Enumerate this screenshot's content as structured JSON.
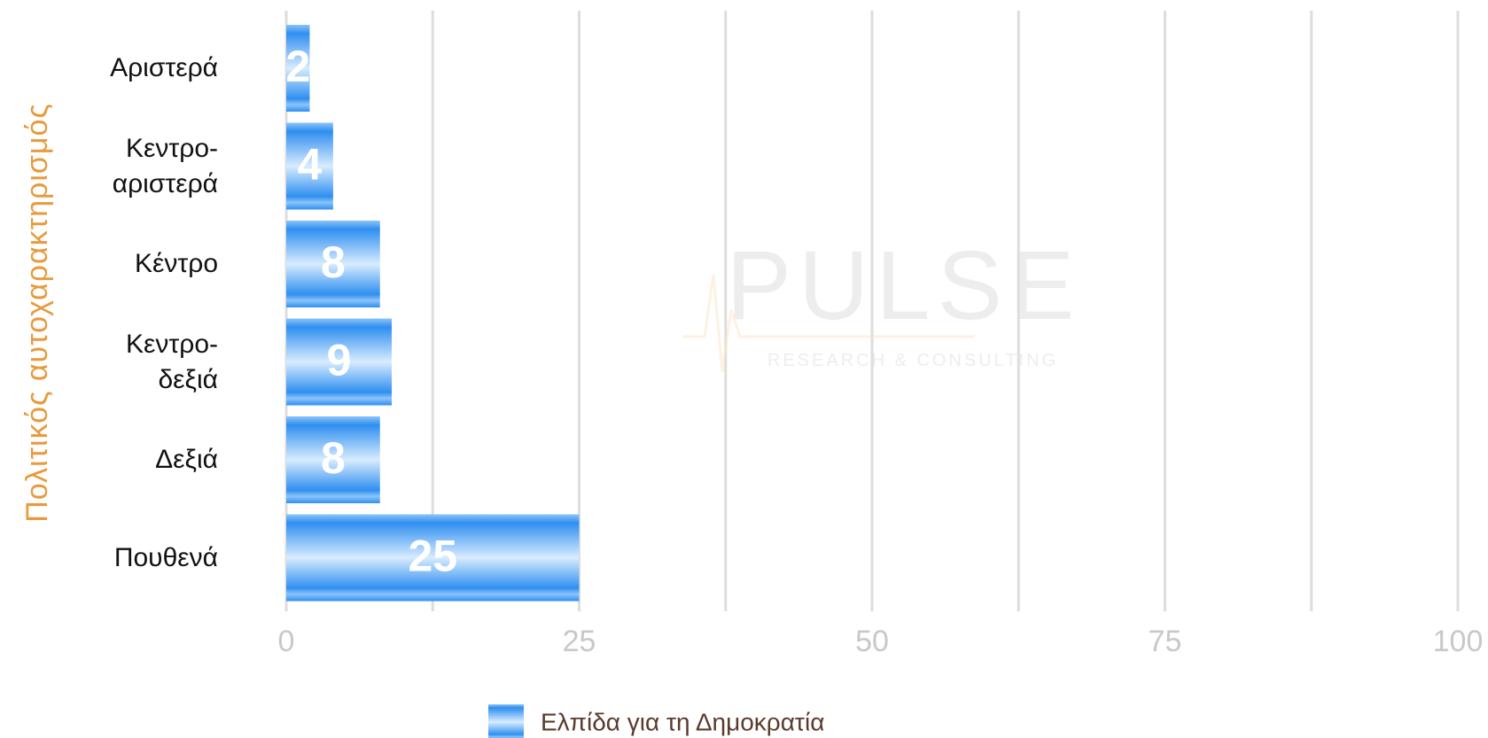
{
  "chart_data": {
    "type": "bar",
    "orientation": "horizontal",
    "y_axis_label": "Πολιτικός αυτοχαρακτηρισμός",
    "categories": [
      "Αριστερά",
      "Κεντρο-\nαριστερά",
      "Κέντρο",
      "Κεντρο-\nδεξιά",
      "Δεξιά",
      "Πουθενά"
    ],
    "series": [
      {
        "name": "Ελπίδα για τη Δημοκρατία",
        "color": "#2f8ff0",
        "values": [
          2,
          4,
          8,
          9,
          8,
          25
        ]
      }
    ],
    "xlim": [
      0,
      100
    ],
    "xticks": [
      0,
      25,
      50,
      75,
      100
    ],
    "grid": true,
    "data_labels": true,
    "watermark": {
      "title": "PULSE",
      "subtitle": "RESEARCH & CONSULTING"
    }
  }
}
